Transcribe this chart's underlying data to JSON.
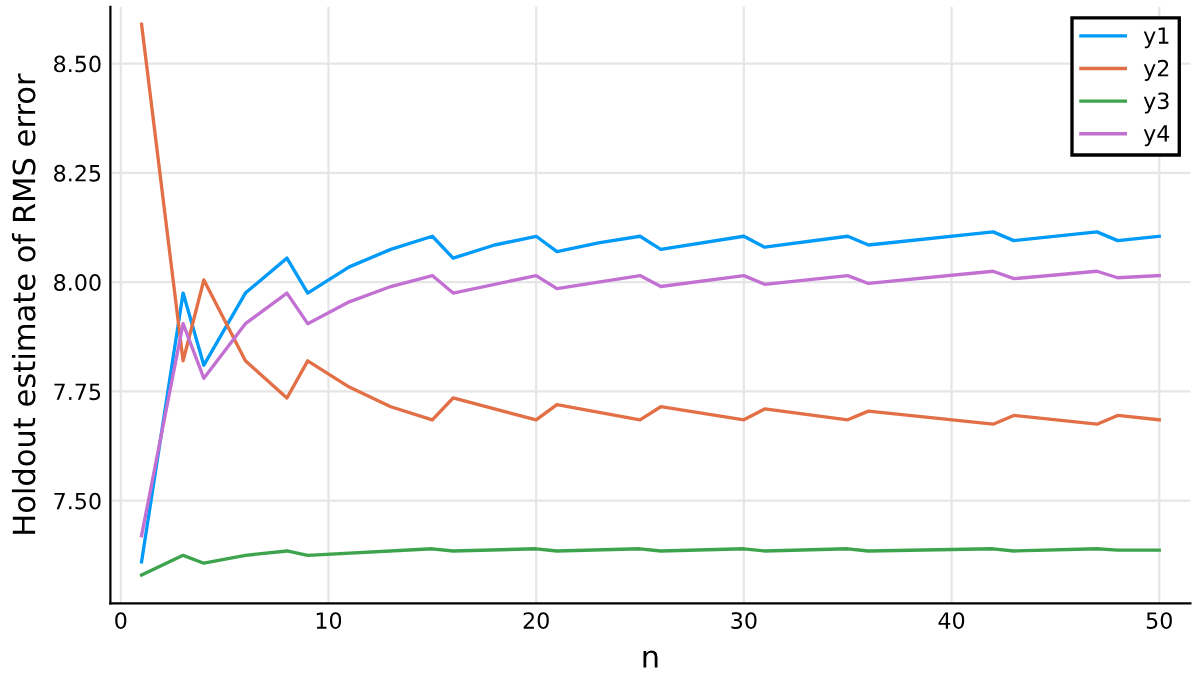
{
  "chart_data": {
    "type": "line",
    "xlabel": "n",
    "ylabel": "Holdout estimate of RMS error",
    "xlim": [
      -0.5,
      51.5
    ],
    "ylim": [
      7.265,
      8.63
    ],
    "xticks": [
      0,
      10,
      20,
      30,
      40,
      50
    ],
    "yticks": [
      {
        "value": 7.5,
        "label": "7.50"
      },
      {
        "value": 7.75,
        "label": "7.75"
      },
      {
        "value": 8.0,
        "label": "8.00"
      },
      {
        "value": 8.25,
        "label": "8.25"
      },
      {
        "value": 8.5,
        "label": "8.50"
      }
    ],
    "grid": true,
    "legend": "top right",
    "line_style": "solid",
    "marker": "none",
    "series": [
      {
        "name": "y1",
        "color": "#009af9",
        "x": [
          1,
          3,
          4,
          6,
          8,
          9,
          11,
          13,
          15,
          16,
          18,
          20,
          21,
          23,
          25,
          26,
          30,
          31,
          35,
          36,
          42,
          43,
          47,
          48,
          50
        ],
        "values": [
          7.36,
          7.975,
          7.81,
          7.975,
          8.055,
          7.975,
          8.035,
          8.075,
          8.105,
          8.055,
          8.085,
          8.105,
          8.07,
          8.09,
          8.105,
          8.075,
          8.105,
          8.08,
          8.105,
          8.085,
          8.115,
          8.095,
          8.115,
          8.095,
          8.105
        ]
      },
      {
        "name": "y2",
        "color": "#e26f46",
        "x": [
          1,
          3,
          4,
          6,
          8,
          9,
          11,
          13,
          15,
          16,
          20,
          21,
          25,
          26,
          30,
          31,
          35,
          36,
          42,
          43,
          47,
          48,
          50
        ],
        "values": [
          8.59,
          7.82,
          8.005,
          7.82,
          7.735,
          7.82,
          7.76,
          7.715,
          7.685,
          7.735,
          7.685,
          7.72,
          7.685,
          7.715,
          7.685,
          7.71,
          7.685,
          7.705,
          7.675,
          7.695,
          7.675,
          7.695,
          7.685
        ]
      },
      {
        "name": "y3",
        "color": "#3da44d",
        "x": [
          1,
          3,
          4,
          6,
          8,
          9,
          15,
          16,
          20,
          21,
          25,
          26,
          30,
          31,
          35,
          36,
          42,
          43,
          47,
          48,
          50
        ],
        "values": [
          7.33,
          7.375,
          7.357,
          7.375,
          7.385,
          7.375,
          7.39,
          7.385,
          7.39,
          7.385,
          7.39,
          7.385,
          7.39,
          7.385,
          7.39,
          7.385,
          7.39,
          7.385,
          7.39,
          7.387,
          7.387
        ]
      },
      {
        "name": "y4",
        "color": "#c271d2",
        "x": [
          1,
          3,
          4,
          6,
          8,
          9,
          11,
          13,
          15,
          16,
          20,
          21,
          25,
          26,
          30,
          31,
          35,
          36,
          42,
          43,
          47,
          48,
          50
        ],
        "values": [
          7.42,
          7.905,
          7.78,
          7.905,
          7.975,
          7.905,
          7.955,
          7.99,
          8.015,
          7.975,
          8.015,
          7.985,
          8.015,
          7.99,
          8.015,
          7.995,
          8.015,
          7.997,
          8.025,
          8.008,
          8.025,
          8.01,
          8.015
        ]
      }
    ]
  }
}
